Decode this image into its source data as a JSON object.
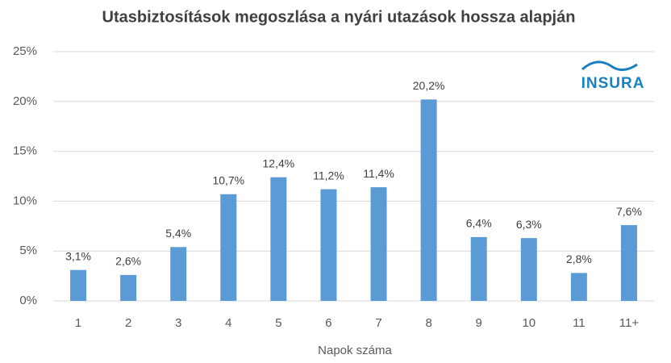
{
  "chart_data": {
    "type": "bar",
    "title": "Utasbiztosítások megoszlása a nyári utazások hossza alapján",
    "x_label": "Napok száma",
    "logo": "INSURA",
    "categories": [
      "1",
      "2",
      "3",
      "4",
      "5",
      "6",
      "7",
      "8",
      "9",
      "10",
      "11",
      "11+"
    ],
    "values": [
      3.1,
      2.6,
      5.4,
      10.7,
      12.4,
      11.2,
      11.4,
      20.2,
      6.4,
      6.3,
      2.8,
      7.6
    ],
    "value_labels": [
      "3,1%",
      "2,6%",
      "5,4%",
      "10,7%",
      "12,4%",
      "11,2%",
      "11,4%",
      "20,2%",
      "6,4%",
      "6,3%",
      "2,8%",
      "7,6%"
    ],
    "color": "#5b9bd5",
    "ylim": [
      0,
      25
    ],
    "yticks": [
      {
        "value": 0,
        "label": "0%"
      },
      {
        "value": 5,
        "label": "5%"
      },
      {
        "value": 10,
        "label": "10%"
      },
      {
        "value": 15,
        "label": "15%"
      },
      {
        "value": 20,
        "label": "20%"
      },
      {
        "value": 25,
        "label": "25%"
      }
    ],
    "grid": true
  }
}
